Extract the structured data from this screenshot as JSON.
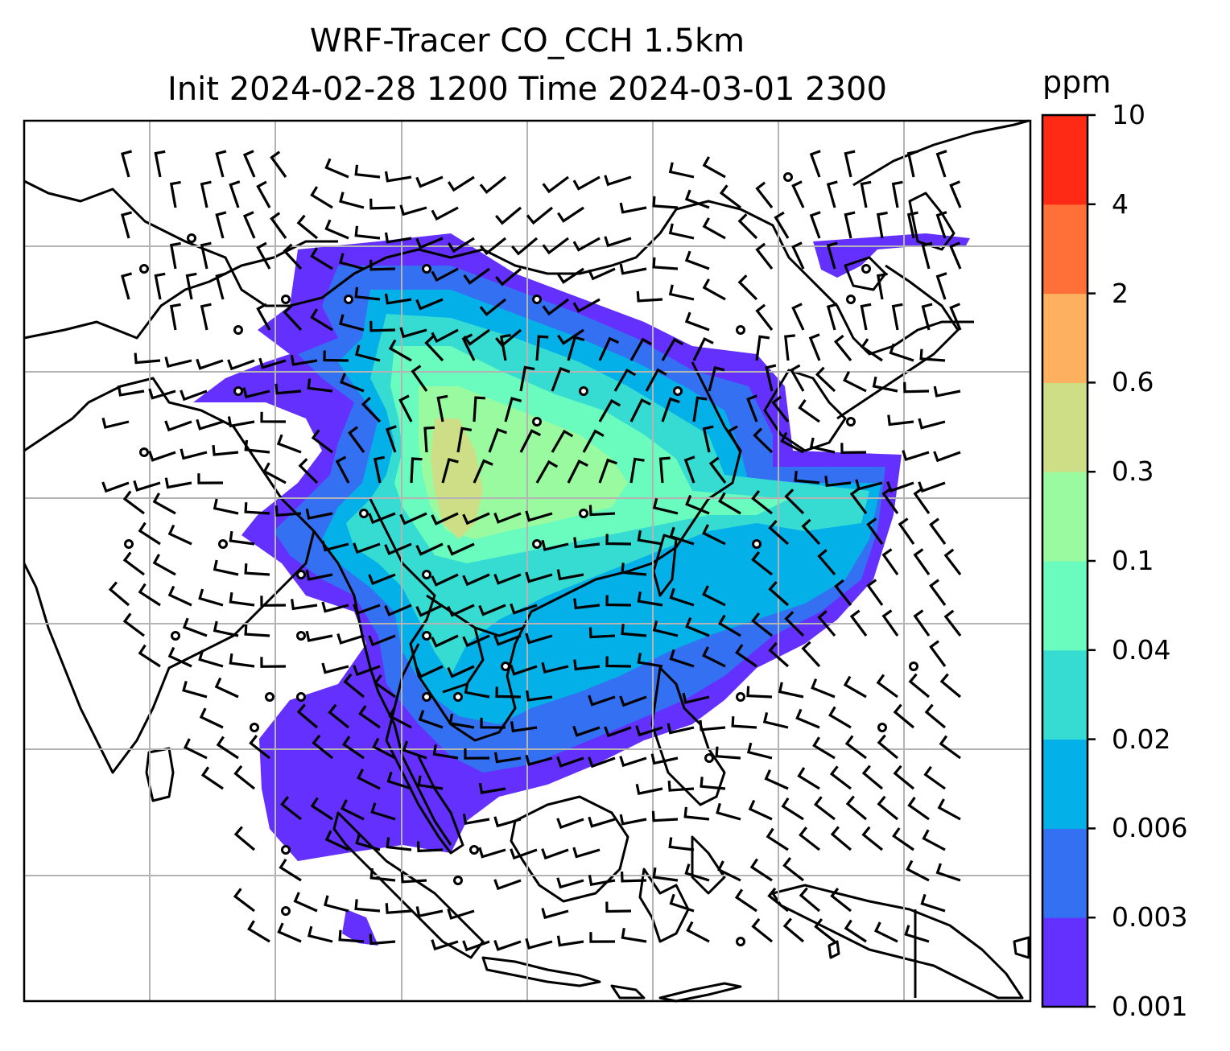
{
  "title": {
    "line1": "WRF-Tracer CO_CCH 1.5km",
    "line2": "Init 2024-02-28 1200 Time 2024-03-01 2300"
  },
  "colorbar": {
    "unit": "ppm",
    "levels": [
      {
        "label": "0.001",
        "color": "#6430fd"
      },
      {
        "label": "0.003",
        "color": "#3470f2"
      },
      {
        "label": "0.006",
        "color": "#04b0e8"
      },
      {
        "label": "0.02",
        "color": "#36dcd2"
      },
      {
        "label": "0.04",
        "color": "#6afbbe"
      },
      {
        "label": "0.1",
        "color": "#9afa9f"
      },
      {
        "label": "0.3",
        "color": "#cede86"
      },
      {
        "label": "0.6",
        "color": "#fdb05f"
      },
      {
        "label": "2",
        "color": "#fe7038"
      },
      {
        "label": "4",
        "color": "#fe2a16"
      },
      {
        "label": "10",
        "color": null
      }
    ]
  },
  "map": {
    "gridlines": true,
    "coastline_color": "#000000",
    "gridline_color": "#b4b4b4",
    "wind_barb_color": "#000000"
  }
}
